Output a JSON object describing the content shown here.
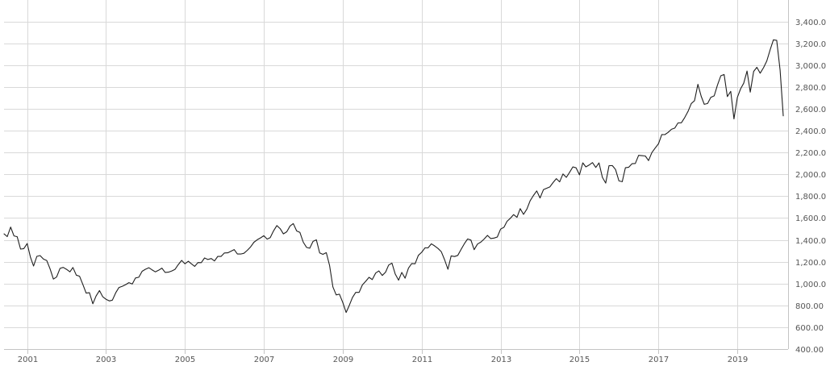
{
  "chart_data": {
    "type": "line",
    "title": "",
    "xlabel": "",
    "ylabel": "",
    "x_range": [
      "2000-06-01",
      "2020-04-15"
    ],
    "ylim": [
      400,
      3500
    ],
    "grid": true,
    "legend": "none",
    "x_ticks": [
      "2001",
      "2003",
      "2005",
      "2007",
      "2009",
      "2011",
      "2013",
      "2015",
      "2017",
      "2019"
    ],
    "y_ticks": [
      "400.00",
      "600.00",
      "800.00",
      "1,000.00",
      "1,200.00",
      "1,400.00",
      "1,600.00",
      "1,800.00",
      "2,000.00",
      "2,200.00",
      "2,400.00",
      "2,600.00",
      "2,800.00",
      "3,000.00",
      "3,200.00",
      "3,400.00"
    ],
    "colors": {
      "line": "#1f1f1f",
      "grid": "#d9d9d9"
    },
    "series": [
      {
        "values": [
          [
            "2000-06-01",
            1455
          ],
          [
            "2000-07-01",
            1430
          ],
          [
            "2000-08-01",
            1517
          ],
          [
            "2000-09-01",
            1436
          ],
          [
            "2000-10-01",
            1429
          ],
          [
            "2000-11-01",
            1315
          ],
          [
            "2000-12-01",
            1320
          ],
          [
            "2001-01-01",
            1366
          ],
          [
            "2001-02-01",
            1240
          ],
          [
            "2001-03-01",
            1160
          ],
          [
            "2001-04-01",
            1249
          ],
          [
            "2001-05-01",
            1256
          ],
          [
            "2001-06-01",
            1224
          ],
          [
            "2001-07-01",
            1211
          ],
          [
            "2001-08-01",
            1134
          ],
          [
            "2001-09-01",
            1041
          ],
          [
            "2001-10-01",
            1060
          ],
          [
            "2001-11-01",
            1139
          ],
          [
            "2001-12-01",
            1148
          ],
          [
            "2002-01-01",
            1130
          ],
          [
            "2002-02-01",
            1107
          ],
          [
            "2002-03-01",
            1147
          ],
          [
            "2002-04-01",
            1077
          ],
          [
            "2002-05-01",
            1067
          ],
          [
            "2002-06-01",
            990
          ],
          [
            "2002-07-01",
            912
          ],
          [
            "2002-08-01",
            916
          ],
          [
            "2002-09-01",
            815
          ],
          [
            "2002-10-01",
            886
          ],
          [
            "2002-11-01",
            936
          ],
          [
            "2002-12-01",
            880
          ],
          [
            "2003-01-01",
            856
          ],
          [
            "2003-02-01",
            841
          ],
          [
            "2003-03-01",
            848
          ],
          [
            "2003-04-01",
            916
          ],
          [
            "2003-05-01",
            964
          ],
          [
            "2003-06-01",
            975
          ],
          [
            "2003-07-01",
            990
          ],
          [
            "2003-08-01",
            1008
          ],
          [
            "2003-09-01",
            996
          ],
          [
            "2003-10-01",
            1051
          ],
          [
            "2003-11-01",
            1058
          ],
          [
            "2003-12-01",
            1112
          ],
          [
            "2004-01-01",
            1131
          ],
          [
            "2004-02-01",
            1145
          ],
          [
            "2004-03-01",
            1126
          ],
          [
            "2004-04-01",
            1107
          ],
          [
            "2004-05-01",
            1121
          ],
          [
            "2004-06-01",
            1141
          ],
          [
            "2004-07-01",
            1102
          ],
          [
            "2004-08-01",
            1104
          ],
          [
            "2004-09-01",
            1115
          ],
          [
            "2004-10-01",
            1130
          ],
          [
            "2004-11-01",
            1174
          ],
          [
            "2004-12-01",
            1212
          ],
          [
            "2005-01-01",
            1181
          ],
          [
            "2005-02-01",
            1204
          ],
          [
            "2005-03-01",
            1181
          ],
          [
            "2005-04-01",
            1157
          ],
          [
            "2005-05-01",
            1192
          ],
          [
            "2005-06-01",
            1191
          ],
          [
            "2005-07-01",
            1234
          ],
          [
            "2005-08-01",
            1220
          ],
          [
            "2005-09-01",
            1229
          ],
          [
            "2005-10-01",
            1207
          ],
          [
            "2005-11-01",
            1249
          ],
          [
            "2005-12-01",
            1248
          ],
          [
            "2006-01-01",
            1280
          ],
          [
            "2006-02-01",
            1281
          ],
          [
            "2006-03-01",
            1295
          ],
          [
            "2006-04-01",
            1311
          ],
          [
            "2006-05-01",
            1270
          ],
          [
            "2006-06-01",
            1270
          ],
          [
            "2006-07-01",
            1277
          ],
          [
            "2006-08-01",
            1304
          ],
          [
            "2006-09-01",
            1336
          ],
          [
            "2006-10-01",
            1378
          ],
          [
            "2006-11-01",
            1401
          ],
          [
            "2006-12-01",
            1418
          ],
          [
            "2007-01-01",
            1438
          ],
          [
            "2007-02-01",
            1407
          ],
          [
            "2007-03-01",
            1421
          ],
          [
            "2007-04-01",
            1482
          ],
          [
            "2007-05-01",
            1531
          ],
          [
            "2007-06-01",
            1503
          ],
          [
            "2007-07-01",
            1455
          ],
          [
            "2007-08-01",
            1474
          ],
          [
            "2007-09-01",
            1527
          ],
          [
            "2007-10-01",
            1549
          ],
          [
            "2007-11-01",
            1481
          ],
          [
            "2007-12-01",
            1468
          ],
          [
            "2008-01-01",
            1378
          ],
          [
            "2008-02-01",
            1331
          ],
          [
            "2008-03-01",
            1323
          ],
          [
            "2008-04-01",
            1386
          ],
          [
            "2008-05-01",
            1400
          ],
          [
            "2008-06-01",
            1280
          ],
          [
            "2008-07-01",
            1267
          ],
          [
            "2008-08-01",
            1283
          ],
          [
            "2008-09-01",
            1165
          ],
          [
            "2008-10-01",
            969
          ],
          [
            "2008-11-01",
            896
          ],
          [
            "2008-12-01",
            903
          ],
          [
            "2009-01-01",
            826
          ],
          [
            "2009-02-01",
            735
          ],
          [
            "2009-03-01",
            798
          ],
          [
            "2009-04-01",
            873
          ],
          [
            "2009-05-01",
            919
          ],
          [
            "2009-06-01",
            919
          ],
          [
            "2009-07-01",
            987
          ],
          [
            "2009-08-01",
            1021
          ],
          [
            "2009-09-01",
            1057
          ],
          [
            "2009-10-01",
            1036
          ],
          [
            "2009-11-01",
            1096
          ],
          [
            "2009-12-01",
            1115
          ],
          [
            "2010-01-01",
            1074
          ],
          [
            "2010-02-01",
            1104
          ],
          [
            "2010-03-01",
            1169
          ],
          [
            "2010-04-01",
            1187
          ],
          [
            "2010-05-01",
            1089
          ],
          [
            "2010-06-01",
            1031
          ],
          [
            "2010-07-01",
            1102
          ],
          [
            "2010-08-01",
            1049
          ],
          [
            "2010-09-01",
            1141
          ],
          [
            "2010-10-01",
            1183
          ],
          [
            "2010-11-01",
            1181
          ],
          [
            "2010-12-01",
            1258
          ],
          [
            "2011-01-01",
            1286
          ],
          [
            "2011-02-01",
            1327
          ],
          [
            "2011-03-01",
            1326
          ],
          [
            "2011-04-01",
            1364
          ],
          [
            "2011-05-01",
            1345
          ],
          [
            "2011-06-01",
            1321
          ],
          [
            "2011-07-01",
            1292
          ],
          [
            "2011-08-01",
            1219
          ],
          [
            "2011-09-01",
            1131
          ],
          [
            "2011-10-01",
            1253
          ],
          [
            "2011-11-01",
            1247
          ],
          [
            "2011-12-01",
            1258
          ],
          [
            "2012-01-01",
            1312
          ],
          [
            "2012-02-01",
            1366
          ],
          [
            "2012-03-01",
            1408
          ],
          [
            "2012-04-01",
            1398
          ],
          [
            "2012-05-01",
            1310
          ],
          [
            "2012-06-01",
            1362
          ],
          [
            "2012-07-01",
            1379
          ],
          [
            "2012-08-01",
            1407
          ],
          [
            "2012-09-01",
            1441
          ],
          [
            "2012-10-01",
            1412
          ],
          [
            "2012-11-01",
            1416
          ],
          [
            "2012-12-01",
            1426
          ],
          [
            "2013-01-01",
            1498
          ],
          [
            "2013-02-01",
            1515
          ],
          [
            "2013-03-01",
            1569
          ],
          [
            "2013-04-01",
            1598
          ],
          [
            "2013-05-01",
            1631
          ],
          [
            "2013-06-01",
            1606
          ],
          [
            "2013-07-01",
            1686
          ],
          [
            "2013-08-01",
            1633
          ],
          [
            "2013-09-01",
            1682
          ],
          [
            "2013-10-01",
            1757
          ],
          [
            "2013-11-01",
            1806
          ],
          [
            "2013-12-01",
            1848
          ],
          [
            "2014-01-01",
            1783
          ],
          [
            "2014-02-01",
            1859
          ],
          [
            "2014-03-01",
            1872
          ],
          [
            "2014-04-01",
            1884
          ],
          [
            "2014-05-01",
            1924
          ],
          [
            "2014-06-01",
            1960
          ],
          [
            "2014-07-01",
            1931
          ],
          [
            "2014-08-01",
            2003
          ],
          [
            "2014-09-01",
            1972
          ],
          [
            "2014-10-01",
            2018
          ],
          [
            "2014-11-01",
            2068
          ],
          [
            "2014-12-01",
            2059
          ],
          [
            "2015-01-01",
            1995
          ],
          [
            "2015-02-01",
            2105
          ],
          [
            "2015-03-01",
            2068
          ],
          [
            "2015-04-01",
            2086
          ],
          [
            "2015-05-01",
            2107
          ],
          [
            "2015-06-01",
            2063
          ],
          [
            "2015-07-01",
            2104
          ],
          [
            "2015-08-01",
            1972
          ],
          [
            "2015-09-01",
            1920
          ],
          [
            "2015-10-01",
            2079
          ],
          [
            "2015-11-01",
            2080
          ],
          [
            "2015-12-01",
            2044
          ],
          [
            "2016-01-01",
            1940
          ],
          [
            "2016-02-01",
            1932
          ],
          [
            "2016-03-01",
            2060
          ],
          [
            "2016-04-01",
            2065
          ],
          [
            "2016-05-01",
            2097
          ],
          [
            "2016-06-01",
            2099
          ],
          [
            "2016-07-01",
            2174
          ],
          [
            "2016-08-01",
            2171
          ],
          [
            "2016-09-01",
            2168
          ],
          [
            "2016-10-01",
            2126
          ],
          [
            "2016-11-01",
            2199
          ],
          [
            "2016-12-01",
            2239
          ],
          [
            "2017-01-01",
            2279
          ],
          [
            "2017-02-01",
            2364
          ],
          [
            "2017-03-01",
            2363
          ],
          [
            "2017-04-01",
            2384
          ],
          [
            "2017-05-01",
            2412
          ],
          [
            "2017-06-01",
            2423
          ],
          [
            "2017-07-01",
            2470
          ],
          [
            "2017-08-01",
            2472
          ],
          [
            "2017-09-01",
            2519
          ],
          [
            "2017-10-01",
            2575
          ],
          [
            "2017-11-01",
            2648
          ],
          [
            "2017-12-01",
            2674
          ],
          [
            "2018-01-01",
            2824
          ],
          [
            "2018-02-01",
            2714
          ],
          [
            "2018-03-01",
            2641
          ],
          [
            "2018-04-01",
            2648
          ],
          [
            "2018-05-01",
            2705
          ],
          [
            "2018-06-01",
            2718
          ],
          [
            "2018-07-01",
            2816
          ],
          [
            "2018-08-01",
            2902
          ],
          [
            "2018-09-01",
            2914
          ],
          [
            "2018-10-01",
            2712
          ],
          [
            "2018-11-01",
            2760
          ],
          [
            "2018-12-01",
            2507
          ],
          [
            "2019-01-01",
            2704
          ],
          [
            "2019-02-01",
            2784
          ],
          [
            "2019-03-01",
            2834
          ],
          [
            "2019-04-01",
            2946
          ],
          [
            "2019-05-01",
            2752
          ],
          [
            "2019-06-01",
            2942
          ],
          [
            "2019-07-01",
            2980
          ],
          [
            "2019-08-01",
            2926
          ],
          [
            "2019-09-01",
            2977
          ],
          [
            "2019-10-01",
            3038
          ],
          [
            "2019-11-01",
            3141
          ],
          [
            "2019-12-01",
            3231
          ],
          [
            "2020-01-01",
            3226
          ],
          [
            "2020-02-01",
            2954
          ],
          [
            "2020-03-01",
            2535
          ]
        ]
      }
    ]
  }
}
